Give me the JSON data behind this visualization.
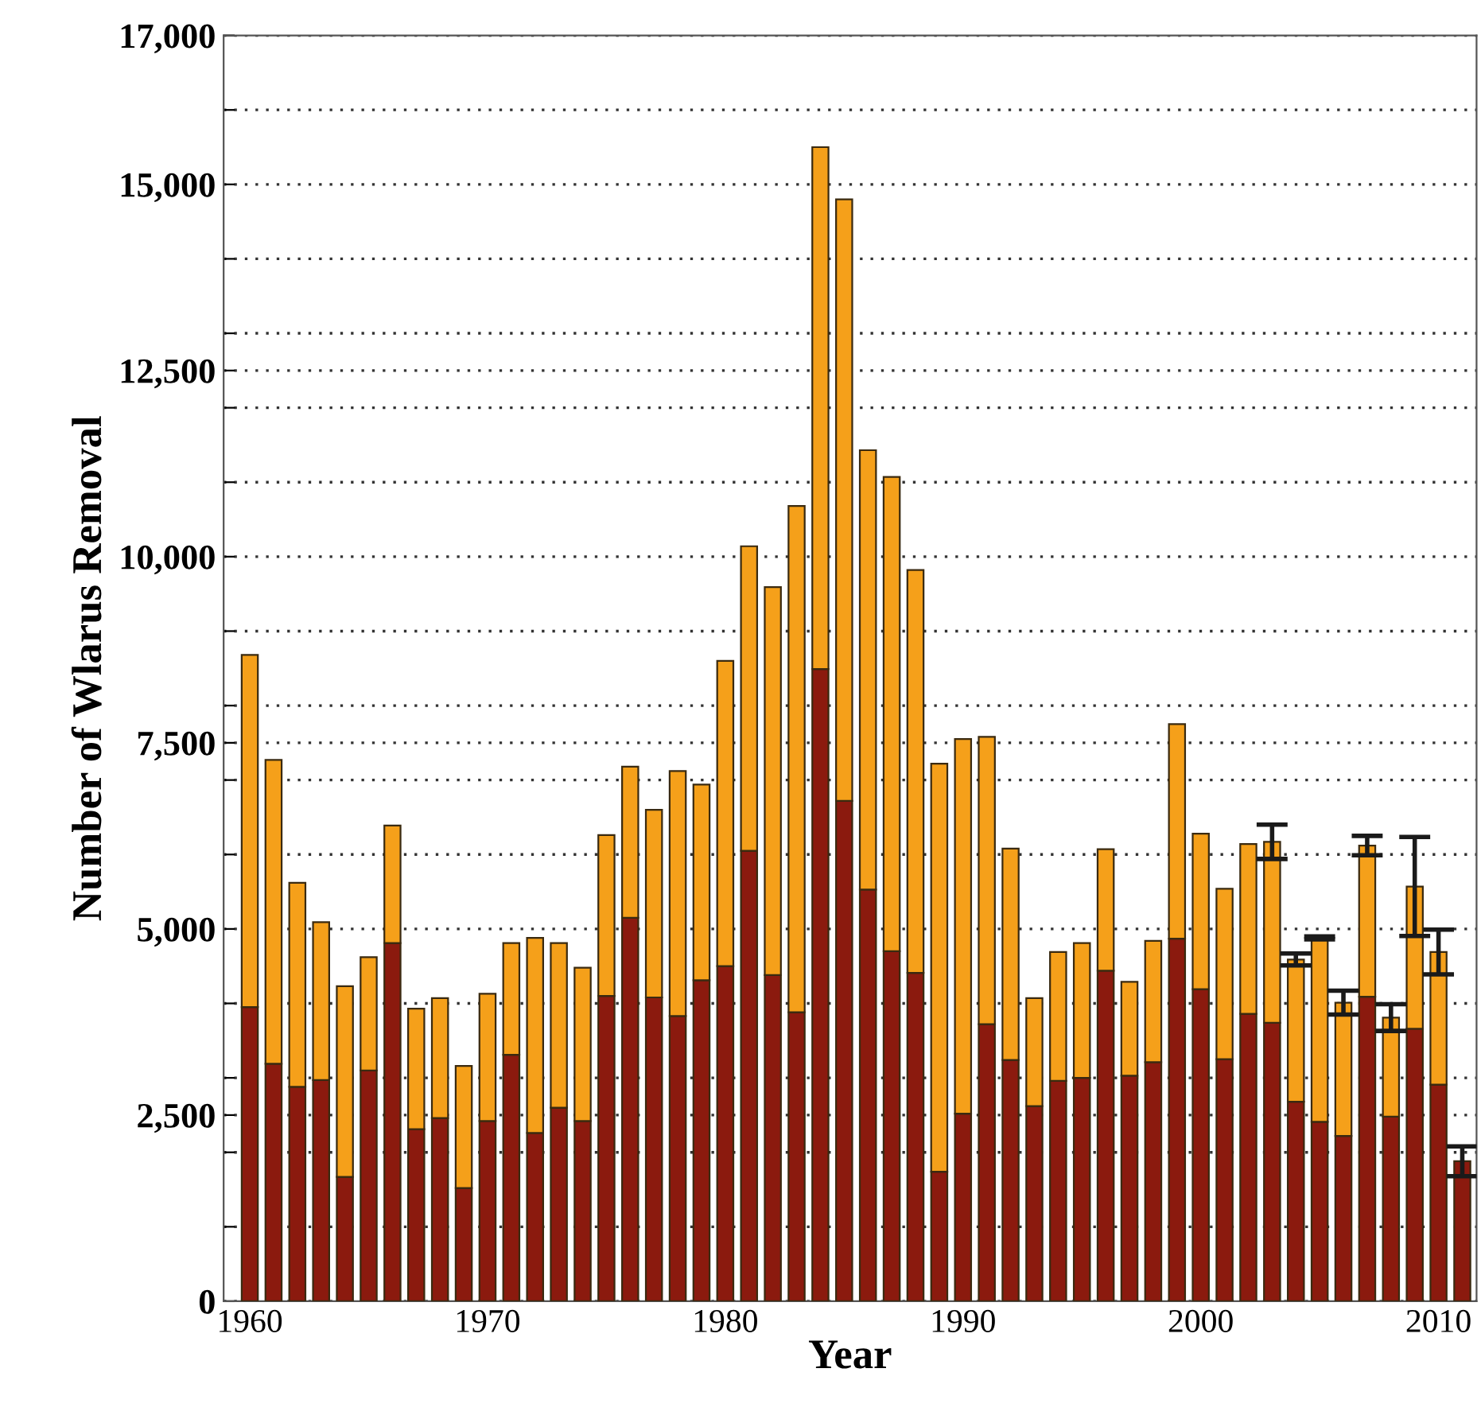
{
  "chart_data": {
    "type": "bar",
    "stacked": true,
    "xlabel": "Year",
    "ylabel": "Number of Wlarus Removal",
    "x": [
      1960,
      1961,
      1962,
      1963,
      1964,
      1965,
      1966,
      1967,
      1968,
      1969,
      1970,
      1971,
      1972,
      1973,
      1974,
      1975,
      1976,
      1977,
      1978,
      1979,
      1980,
      1981,
      1982,
      1983,
      1984,
      1985,
      1986,
      1987,
      1988,
      1989,
      1990,
      1991,
      1992,
      1993,
      1994,
      1995,
      1996,
      1997,
      1998,
      1999,
      2000,
      2001,
      2002,
      2003,
      2004,
      2005,
      2006,
      2007,
      2008,
      2009,
      2010,
      2011
    ],
    "series": [
      {
        "color": "#8b1a0e",
        "values": [
          3950,
          3190,
          2880,
          2970,
          1670,
          3100,
          4810,
          2310,
          2460,
          1520,
          2420,
          3310,
          2260,
          2600,
          2420,
          4100,
          5150,
          4080,
          3830,
          4310,
          4500,
          6050,
          4380,
          3880,
          8490,
          6720,
          5530,
          4700,
          4410,
          1740,
          2520,
          3720,
          3240,
          2620,
          2960,
          3000,
          4440,
          3030,
          3210,
          4870,
          4190,
          3250,
          3860,
          3740,
          2680,
          2410,
          2220,
          4090,
          2480,
          3660,
          2910,
          1880
        ],
        "errors": [
          null,
          null,
          null,
          null,
          null,
          null,
          null,
          null,
          null,
          null,
          null,
          null,
          null,
          null,
          null,
          null,
          null,
          null,
          null,
          null,
          null,
          null,
          null,
          null,
          null,
          null,
          null,
          null,
          null,
          null,
          null,
          null,
          null,
          null,
          null,
          null,
          null,
          null,
          null,
          null,
          null,
          null,
          null,
          null,
          null,
          null,
          null,
          null,
          null,
          null,
          null,
          200
        ]
      },
      {
        "color": "#f5a01a",
        "values": [
          4730,
          4080,
          2740,
          2120,
          2560,
          1520,
          1580,
          1620,
          1610,
          1640,
          1710,
          1500,
          2620,
          2210,
          2060,
          2160,
          2030,
          2520,
          3290,
          2630,
          4100,
          4090,
          5210,
          6800,
          7010,
          8080,
          5900,
          6370,
          5410,
          5480,
          5030,
          3860,
          2840,
          1450,
          1730,
          1810,
          1630,
          1260,
          1630,
          2880,
          2090,
          2290,
          2280,
          2430,
          1910,
          2470,
          1790,
          2030,
          1330,
          1910,
          1780,
          null
        ],
        "errors": [
          null,
          null,
          null,
          null,
          null,
          null,
          null,
          null,
          null,
          null,
          null,
          null,
          null,
          null,
          null,
          null,
          null,
          null,
          null,
          null,
          null,
          null,
          null,
          null,
          null,
          null,
          null,
          null,
          null,
          null,
          null,
          null,
          null,
          null,
          null,
          null,
          null,
          null,
          null,
          null,
          null,
          null,
          null,
          230,
          80,
          20,
          160,
          130,
          180,
          665,
          300,
          null
        ]
      }
    ],
    "xlim": [
      1958.9,
      2011.6
    ],
    "xticks": [
      1960,
      {
        "value": 1965,
        "label": null
      },
      1970,
      {
        "value": 1975,
        "label": null
      },
      1980,
      {
        "value": 1985,
        "label": null
      },
      1990,
      {
        "value": 1995,
        "label": null
      },
      2000,
      {
        "value": 2005,
        "label": null
      },
      2010
    ],
    "ylim": [
      0,
      17000
    ],
    "yticks": [
      0,
      {
        "value": 1000,
        "label": null
      },
      {
        "value": 2000,
        "label": null
      },
      {
        "value": 2500,
        "label": "2,500"
      },
      {
        "value": 3000,
        "label": null
      },
      {
        "value": 4000,
        "label": null
      },
      {
        "value": 5000,
        "label": "5,000"
      },
      {
        "value": 6000,
        "label": null
      },
      {
        "value": 7000,
        "label": null
      },
      {
        "value": 7500,
        "label": "7,500"
      },
      {
        "value": 8000,
        "label": null
      },
      {
        "value": 9000,
        "label": null
      },
      {
        "value": 10000,
        "label": "10,000"
      },
      {
        "value": 11000,
        "label": null
      },
      {
        "value": 12000,
        "label": null
      },
      {
        "value": 12500,
        "label": "12,500"
      },
      {
        "value": 13000,
        "label": null
      },
      {
        "value": 14000,
        "label": null
      },
      {
        "value": 15000,
        "label": "15,000"
      },
      {
        "value": 16000,
        "label": null
      },
      {
        "value": 17000,
        "label": "17,000"
      }
    ],
    "grid": "y",
    "line_style": "dotted"
  }
}
